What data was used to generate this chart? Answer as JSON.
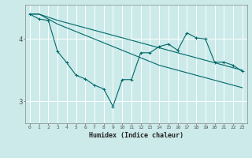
{
  "xlabel": "Humidex (Indice chaleur)",
  "bg_color": "#cceaea",
  "line_color": "#006868",
  "grid_color": "#ffffff",
  "xlim": [
    -0.5,
    23.5
  ],
  "ylim": [
    2.65,
    4.55
  ],
  "yticks": [
    3,
    4
  ],
  "xticks": [
    0,
    1,
    2,
    3,
    4,
    5,
    6,
    7,
    8,
    9,
    10,
    11,
    12,
    13,
    14,
    15,
    16,
    17,
    18,
    19,
    20,
    21,
    22,
    23
  ],
  "series": [
    {
      "x": [
        0,
        1,
        2,
        3,
        4,
        5,
        6,
        7,
        8,
        9,
        10,
        11,
        12,
        13,
        14,
        15,
        16,
        17,
        18,
        19,
        20,
        21,
        22,
        23
      ],
      "y": [
        4.4,
        4.4,
        4.35,
        4.3,
        4.26,
        4.22,
        4.18,
        4.14,
        4.1,
        4.06,
        4.02,
        3.98,
        3.94,
        3.9,
        3.86,
        3.82,
        3.78,
        3.74,
        3.7,
        3.66,
        3.62,
        3.58,
        3.54,
        3.5
      ]
    },
    {
      "x": [
        0,
        1,
        2,
        3,
        4,
        5,
        6,
        7,
        8,
        9,
        10,
        11,
        12,
        13,
        14,
        15,
        16,
        17,
        18,
        19,
        20,
        21,
        22,
        23
      ],
      "y": [
        4.4,
        4.4,
        4.32,
        4.24,
        4.18,
        4.12,
        4.06,
        4.0,
        3.94,
        3.88,
        3.82,
        3.76,
        3.7,
        3.64,
        3.58,
        3.54,
        3.5,
        3.46,
        3.42,
        3.38,
        3.34,
        3.3,
        3.26,
        3.22
      ]
    },
    {
      "x": [
        0,
        1,
        2,
        3,
        4,
        5,
        6,
        7,
        8,
        9,
        10,
        11,
        12,
        13,
        14,
        15,
        16,
        17,
        18,
        19,
        20,
        21,
        22,
        23
      ],
      "y": [
        4.4,
        4.32,
        4.3,
        3.8,
        3.62,
        3.42,
        3.36,
        3.26,
        3.2,
        2.92,
        3.35,
        3.35,
        3.78,
        3.78,
        3.88,
        3.92,
        3.82,
        4.1,
        4.02,
        4.0,
        3.63,
        3.63,
        3.58,
        3.48
      ]
    }
  ]
}
